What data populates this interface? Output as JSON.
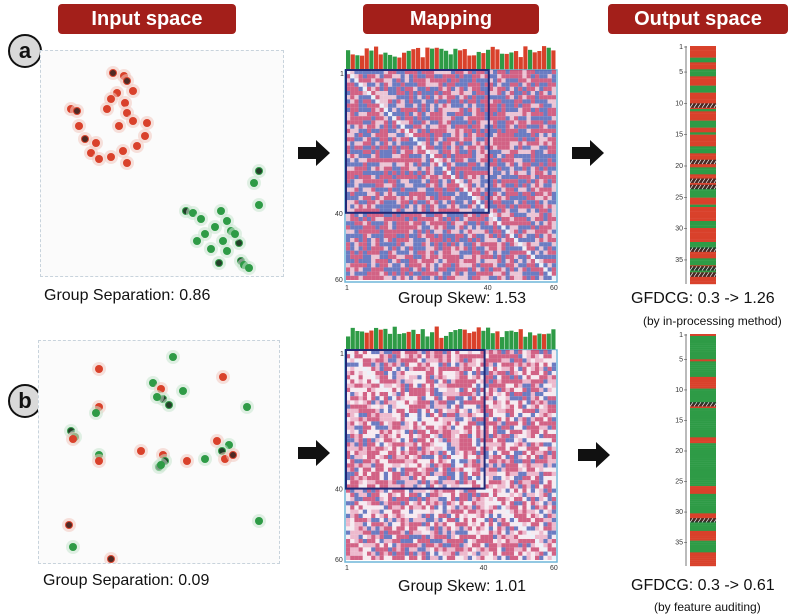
{
  "headers": {
    "input": "Input space",
    "mapping": "Mapping",
    "output": "Output space"
  },
  "rows": [
    {
      "badge": "a",
      "separation_caption": "Group Separation: 0.86",
      "skew_caption": "Group Skew: 1.53",
      "metric_caption": "GFDCG: 0.3 -> 1.26",
      "method_caption": "(by in-processing method)",
      "matrix_ticks": [
        "1",
        "40",
        "60"
      ],
      "ranking_ticks": [
        "1",
        "5",
        "10",
        "15",
        "20",
        "25",
        "30",
        "35"
      ],
      "ranking_colors": "RRRRRGGRRRGGGRRRRGGGRRRRRRRGRRRRGGGRRGRRRRRGGGRRRRRRGGGRRRRRRGGGGRRRGRRRRRRGGGRRRRRRGGGRRRRGGGRGGRRRRR",
      "hatched": [
        10,
        19,
        22,
        23,
        33,
        36,
        37
      ]
    },
    {
      "badge": "b",
      "separation_caption": "Group Separation: 0.09",
      "skew_caption": "Group Skew: 1.01",
      "metric_caption": "GFDCG: 0.3 -> 0.61",
      "method_caption": "(by feature auditing)",
      "matrix_ticks": [
        "1",
        "40",
        "60"
      ],
      "ranking_ticks": [
        "1",
        "5",
        "10",
        "15",
        "20",
        "25",
        "30",
        "35"
      ],
      "ranking_colors": "RGGGGGGGGGGGGRGGGGGGGGRRRRRRGGGGGGGGRRGGGGGGGGGGGGGGGRRRGGGGGGGGGGGGGGGGGGGGGGRRRRGGGGGGGGGGRRRRGGGGGRRRRRGGGGGGRRRRRRR",
      "hatched": [
        12,
        31
      ]
    }
  ],
  "colors": {
    "header_bg": "#a31f1a",
    "group_red": "#d9412b",
    "group_green": "#2e9b46",
    "matrix_red": "#c8406a",
    "matrix_blue": "#4a5fb5",
    "highlight": "#1f2a78"
  }
}
